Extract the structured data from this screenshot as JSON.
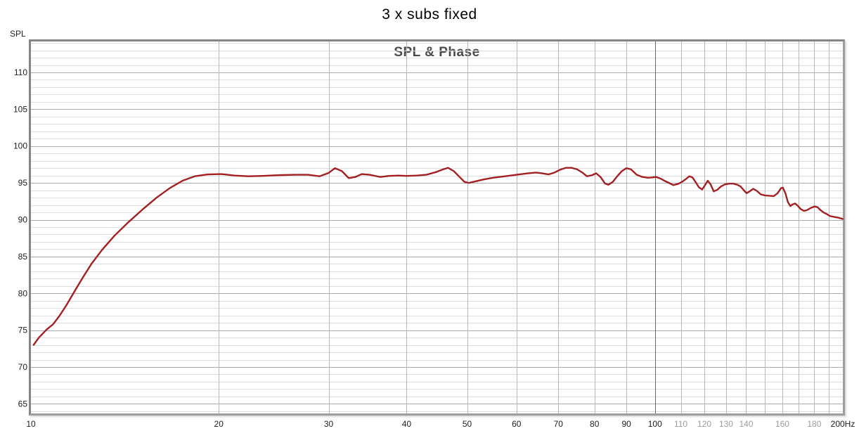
{
  "title": "3 x subs fixed",
  "chart_data": {
    "type": "line",
    "title": "SPL & Phase",
    "legend": "none",
    "grid": "on",
    "x_axis": {
      "unit": "Hz",
      "scale": "log",
      "min": 10,
      "max": 200,
      "gridlines_hz": [
        20,
        30,
        40,
        50,
        60,
        70,
        80,
        90,
        100,
        110,
        120,
        130,
        140,
        150,
        160,
        170,
        180,
        190
      ],
      "emphasized_gridline_hz": 100,
      "tick_labels": [
        {
          "f": 10,
          "text": "10",
          "muted": false
        },
        {
          "f": 20,
          "text": "20",
          "muted": false
        },
        {
          "f": 30,
          "text": "30",
          "muted": false
        },
        {
          "f": 40,
          "text": "40",
          "muted": false
        },
        {
          "f": 50,
          "text": "50",
          "muted": false
        },
        {
          "f": 60,
          "text": "60",
          "muted": false
        },
        {
          "f": 70,
          "text": "70",
          "muted": false
        },
        {
          "f": 80,
          "text": "80",
          "muted": false
        },
        {
          "f": 90,
          "text": "90",
          "muted": false
        },
        {
          "f": 100,
          "text": "100",
          "muted": false
        },
        {
          "f": 110,
          "text": "110",
          "muted": true
        },
        {
          "f": 120,
          "text": "120",
          "muted": true
        },
        {
          "f": 130,
          "text": "130",
          "muted": true
        },
        {
          "f": 140,
          "text": "140",
          "muted": true
        },
        {
          "f": 160,
          "text": "160",
          "muted": true
        },
        {
          "f": 180,
          "text": "180",
          "muted": true
        },
        {
          "f": 200,
          "text": "200Hz",
          "muted": false
        }
      ]
    },
    "y_axis": {
      "label": "SPL",
      "min": 63.7,
      "max": 114.2,
      "minor_step": 1,
      "major_step": 5,
      "major_ticks": [
        65,
        70,
        75,
        80,
        85,
        90,
        95,
        100,
        105,
        110
      ]
    },
    "series": [
      {
        "name": "SPL",
        "color": "#a32022",
        "points": [
          [
            10.1,
            73.0
          ],
          [
            10.3,
            74.0
          ],
          [
            10.6,
            75.1
          ],
          [
            10.85,
            75.8
          ],
          [
            11.1,
            76.9
          ],
          [
            11.4,
            78.4
          ],
          [
            11.75,
            80.3
          ],
          [
            12.1,
            82.1
          ],
          [
            12.5,
            84.0
          ],
          [
            13.0,
            85.9
          ],
          [
            13.6,
            87.8
          ],
          [
            14.3,
            89.6
          ],
          [
            15.1,
            91.4
          ],
          [
            15.9,
            93.0
          ],
          [
            16.7,
            94.3
          ],
          [
            17.5,
            95.3
          ],
          [
            18.3,
            95.9
          ],
          [
            19.2,
            96.15
          ],
          [
            20.2,
            96.2
          ],
          [
            21.2,
            96.0
          ],
          [
            22.3,
            95.9
          ],
          [
            23.5,
            95.95
          ],
          [
            25.0,
            96.05
          ],
          [
            26.5,
            96.1
          ],
          [
            27.8,
            96.1
          ],
          [
            29.0,
            95.9
          ],
          [
            30.0,
            96.35
          ],
          [
            30.7,
            97.0
          ],
          [
            31.5,
            96.6
          ],
          [
            32.3,
            95.65
          ],
          [
            33.1,
            95.8
          ],
          [
            33.9,
            96.2
          ],
          [
            34.9,
            96.1
          ],
          [
            36.3,
            95.8
          ],
          [
            37.5,
            95.95
          ],
          [
            38.8,
            96.0
          ],
          [
            40.0,
            95.95
          ],
          [
            41.5,
            96.0
          ],
          [
            43.0,
            96.1
          ],
          [
            44.5,
            96.45
          ],
          [
            45.8,
            96.85
          ],
          [
            46.6,
            97.05
          ],
          [
            47.6,
            96.6
          ],
          [
            48.5,
            95.9
          ],
          [
            49.5,
            95.15
          ],
          [
            50.3,
            95.0
          ],
          [
            51.5,
            95.2
          ],
          [
            53.0,
            95.45
          ],
          [
            55.0,
            95.7
          ],
          [
            57.5,
            95.9
          ],
          [
            60.0,
            96.1
          ],
          [
            62.5,
            96.3
          ],
          [
            64.5,
            96.4
          ],
          [
            66.0,
            96.3
          ],
          [
            67.5,
            96.15
          ],
          [
            69.0,
            96.4
          ],
          [
            70.5,
            96.8
          ],
          [
            72.0,
            97.05
          ],
          [
            73.5,
            97.05
          ],
          [
            75.0,
            96.85
          ],
          [
            76.5,
            96.4
          ],
          [
            77.8,
            95.9
          ],
          [
            79.3,
            96.05
          ],
          [
            80.5,
            96.3
          ],
          [
            81.8,
            95.8
          ],
          [
            83.2,
            94.9
          ],
          [
            84.2,
            94.75
          ],
          [
            85.5,
            95.1
          ],
          [
            87.0,
            95.9
          ],
          [
            88.5,
            96.6
          ],
          [
            90.0,
            97.0
          ],
          [
            91.5,
            96.85
          ],
          [
            93.5,
            96.1
          ],
          [
            95.5,
            95.8
          ],
          [
            97.5,
            95.7
          ],
          [
            99.0,
            95.75
          ],
          [
            100.5,
            95.8
          ],
          [
            102.0,
            95.6
          ],
          [
            103.5,
            95.3
          ],
          [
            105.3,
            95.0
          ],
          [
            107.0,
            94.7
          ],
          [
            108.8,
            94.85
          ],
          [
            110.3,
            95.1
          ],
          [
            112.0,
            95.5
          ],
          [
            113.5,
            95.9
          ],
          [
            114.8,
            95.75
          ],
          [
            116.2,
            95.1
          ],
          [
            117.6,
            94.4
          ],
          [
            119.0,
            94.1
          ],
          [
            120.3,
            94.7
          ],
          [
            121.5,
            95.3
          ],
          [
            122.8,
            94.8
          ],
          [
            124.2,
            93.85
          ],
          [
            125.8,
            94.05
          ],
          [
            127.5,
            94.5
          ],
          [
            129.5,
            94.8
          ],
          [
            131.5,
            94.9
          ],
          [
            133.5,
            94.9
          ],
          [
            135.5,
            94.75
          ],
          [
            137.2,
            94.5
          ],
          [
            138.8,
            94.0
          ],
          [
            140.2,
            93.6
          ],
          [
            141.8,
            93.85
          ],
          [
            143.7,
            94.2
          ],
          [
            145.7,
            93.9
          ],
          [
            147.7,
            93.45
          ],
          [
            150.0,
            93.3
          ],
          [
            152.5,
            93.25
          ],
          [
            155.0,
            93.2
          ],
          [
            157.2,
            93.6
          ],
          [
            159.3,
            94.3
          ],
          [
            160.3,
            94.35
          ],
          [
            161.8,
            93.6
          ],
          [
            163.3,
            92.4
          ],
          [
            164.8,
            91.85
          ],
          [
            166.3,
            92.1
          ],
          [
            167.8,
            92.2
          ],
          [
            169.3,
            91.9
          ],
          [
            171.2,
            91.45
          ],
          [
            173.2,
            91.2
          ],
          [
            175.2,
            91.3
          ],
          [
            177.7,
            91.6
          ],
          [
            180.2,
            91.8
          ],
          [
            182.2,
            91.7
          ],
          [
            184.2,
            91.3
          ],
          [
            186.2,
            91.0
          ],
          [
            188.2,
            90.8
          ],
          [
            190.7,
            90.5
          ],
          [
            193.2,
            90.4
          ],
          [
            196.2,
            90.3
          ],
          [
            198.2,
            90.2
          ],
          [
            200.0,
            90.1
          ]
        ]
      }
    ],
    "colors": {
      "grid_minor": "#dedede",
      "grid_major": "#ababab",
      "grid_vertical": "#b8b8b8",
      "grid_emphasized": "#686868",
      "tick_label": "#1c1c1c",
      "tick_label_muted": "#9c9c9c",
      "subtitle": "#4a4a4a",
      "trace": "#a32022"
    }
  }
}
